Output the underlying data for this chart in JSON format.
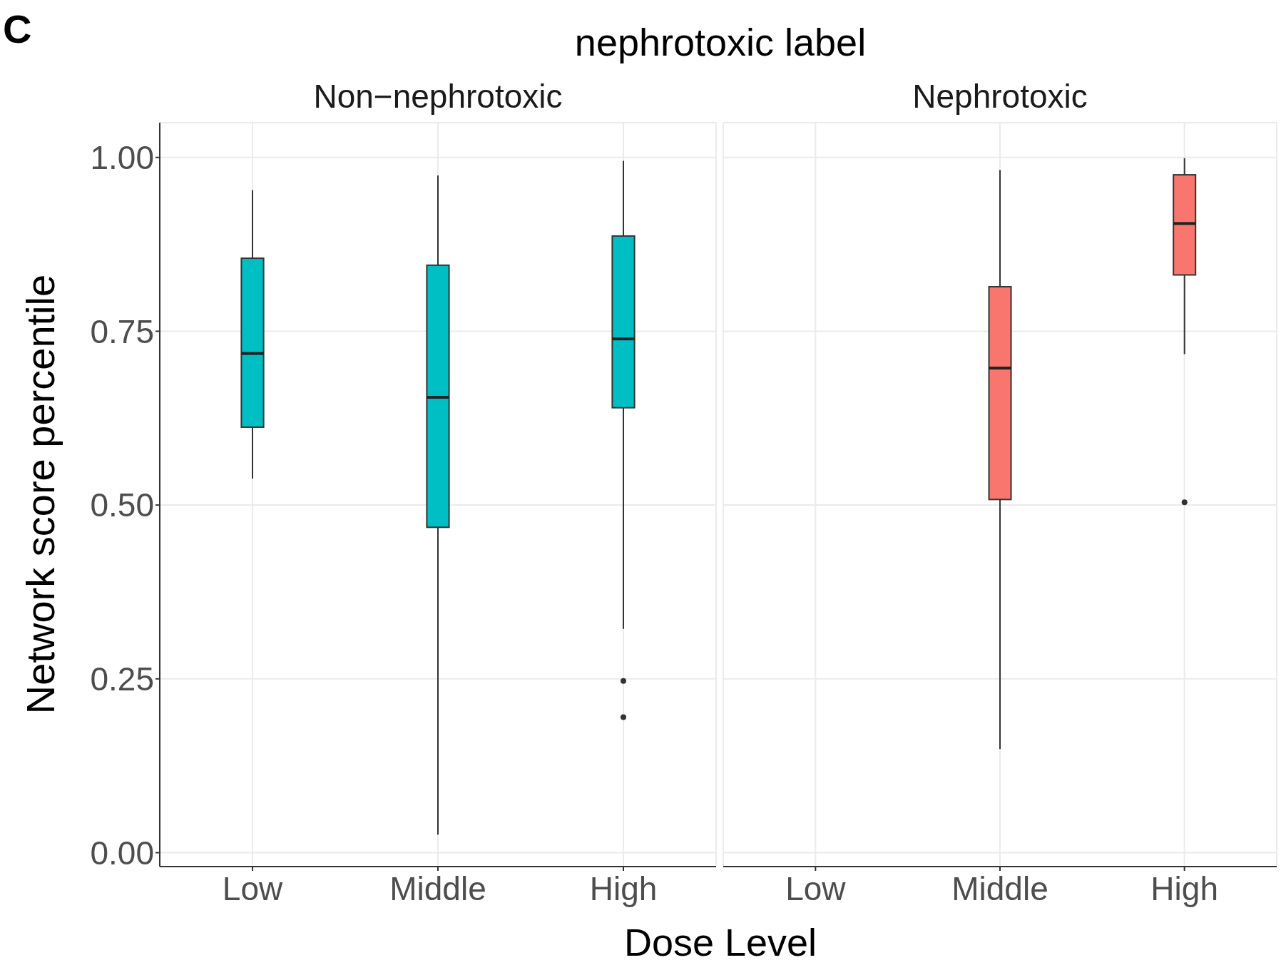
{
  "chart_data": [
    {
      "type": "box",
      "title": "nephrotoxic label",
      "subtitle": "Non−nephrotoxic",
      "xlabel": "Dose Level",
      "ylabel": "Network score percentile",
      "annotations": [
        "C"
      ],
      "categories": [
        "Low",
        "Middle",
        "High"
      ],
      "series": [
        {
          "color": "#00bfc4",
          "boxes": [
            {
              "low": 0.538,
              "q1": 0.612,
              "median": 0.718,
              "q3": 0.855,
              "high": 0.953
            },
            {
              "low": 0.026,
              "q1": 0.468,
              "median": 0.655,
              "q3": 0.845,
              "high": 0.974
            },
            {
              "low": 0.322,
              "q1": 0.64,
              "median": 0.739,
              "q3": 0.887,
              "high": 0.995,
              "outliers": [
                0.247,
                0.195
              ]
            }
          ]
        }
      ],
      "ylim": [
        -0.02,
        1.05
      ],
      "yticks": [
        {
          "value": 0,
          "label": "0.00"
        },
        {
          "value": 0.25,
          "label": "0.25"
        },
        {
          "value": 0.5,
          "label": "0.50"
        },
        {
          "value": 0.75,
          "label": "0.75"
        },
        {
          "value": 1,
          "label": "1.00"
        }
      ],
      "grid": true
    },
    {
      "type": "box",
      "subtitle": "Nephrotoxic",
      "categories": [
        "Low",
        "Middle",
        "High"
      ],
      "series": [
        {
          "color": "#f8766d",
          "boxes": [
            null,
            {
              "low": 0.149,
              "q1": 0.508,
              "median": 0.697,
              "q3": 0.814,
              "high": 0.982
            },
            {
              "low": 0.717,
              "q1": 0.831,
              "median": 0.905,
              "q3": 0.975,
              "high": 0.999,
              "outliers": [
                0.504
              ]
            }
          ]
        }
      ],
      "ylim": [
        -0.02,
        1.05
      ],
      "yticks": [
        0,
        0.25,
        0.5,
        0.75,
        1
      ],
      "grid": true,
      "tick_labels": "x"
    }
  ]
}
